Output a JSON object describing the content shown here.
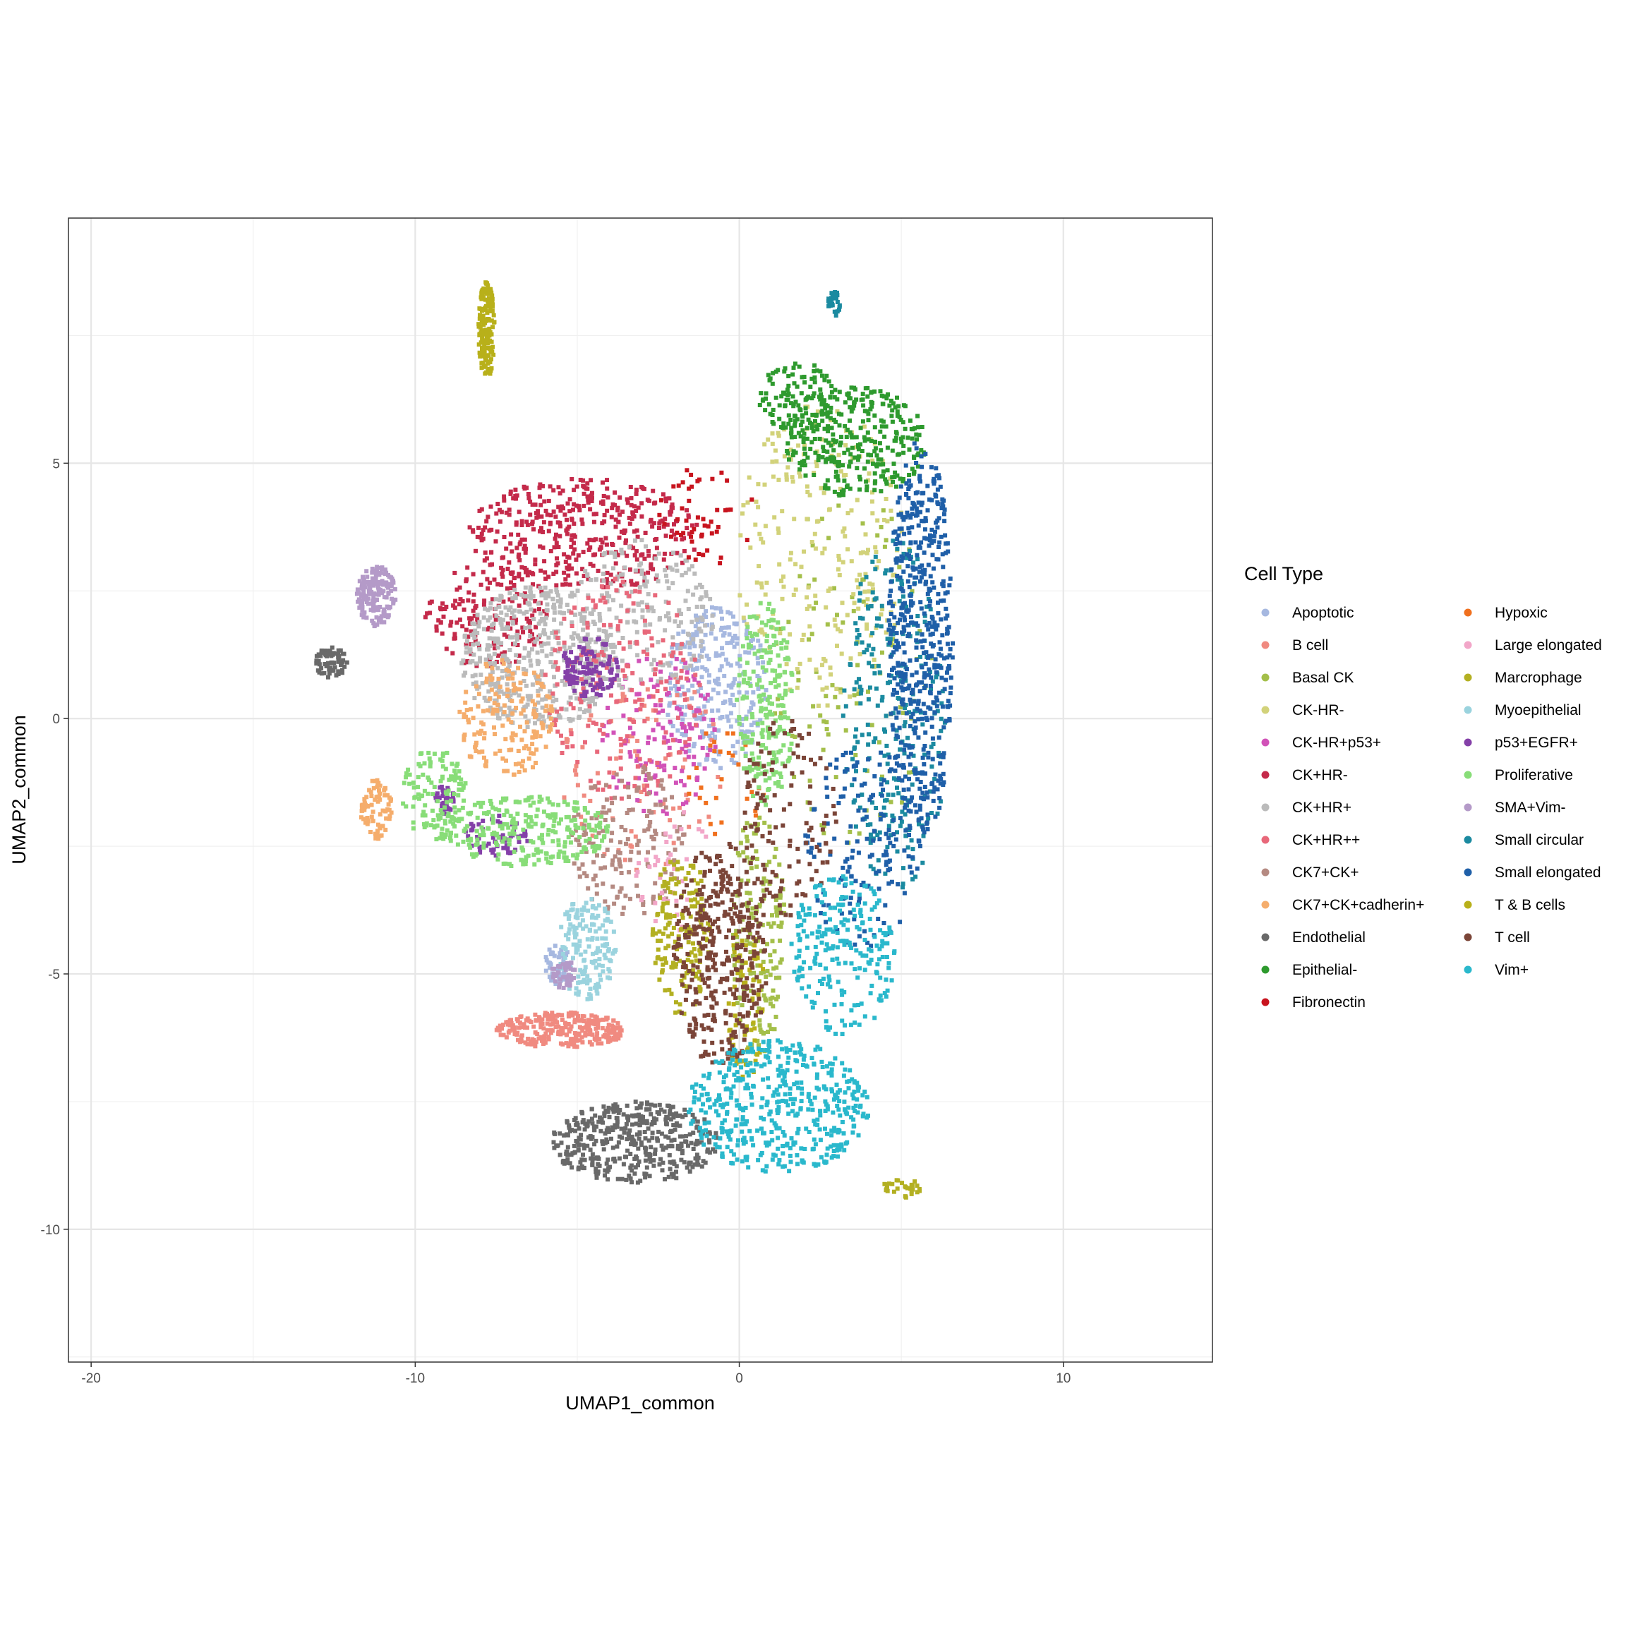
{
  "chart_data": {
    "type": "scatter",
    "title": "",
    "xlabel": "UMAP1_common",
    "ylabel": "UMAP2_common",
    "xlim": [
      -20.7,
      14.6
    ],
    "ylim": [
      -12.6,
      9.8
    ],
    "x_ticks": [
      -20,
      -10,
      0,
      10
    ],
    "y_ticks": [
      -10,
      -5,
      0,
      5
    ],
    "x_tick_labels": [
      "-20",
      "-10",
      "0",
      "10"
    ],
    "y_tick_labels": [
      "-10",
      "-5",
      "0",
      "5"
    ],
    "grid": true,
    "legend": {
      "title": "Cell Type",
      "placement": "right",
      "columns": 2
    },
    "series": [
      {
        "name": "Apoptotic",
        "color": "#a6b8e0",
        "regions": [
          {
            "cx": -0.7,
            "cy": 0.6,
            "rx": 1.6,
            "ry": 1.6,
            "n": 260
          },
          {
            "cx": -5.6,
            "cy": -4.8,
            "rx": 0.4,
            "ry": 0.4,
            "n": 50
          }
        ]
      },
      {
        "name": "B cell",
        "color": "#f08a80",
        "regions": [
          {
            "cx": -5.5,
            "cy": -6.1,
            "rx": 2.0,
            "ry": 0.35,
            "n": 260
          },
          {
            "cx": -3.0,
            "cy": -1.0,
            "rx": 2.5,
            "ry": 2.0,
            "n": 90
          }
        ]
      },
      {
        "name": "Basal CK",
        "color": "#a4bf4a",
        "regions": [
          {
            "cx": 0.6,
            "cy": -4.2,
            "rx": 0.8,
            "ry": 2.6,
            "n": 160
          },
          {
            "cx": 3.5,
            "cy": 1.0,
            "rx": 2.5,
            "ry": 3.5,
            "n": 100
          }
        ]
      },
      {
        "name": "CK-HR-",
        "color": "#d2d27a",
        "regions": [
          {
            "cx": 2.5,
            "cy": 3.2,
            "rx": 2.6,
            "ry": 3.0,
            "n": 240
          }
        ]
      },
      {
        "name": "CK-HR+p53+",
        "color": "#d152b8",
        "regions": [
          {
            "cx": -2.5,
            "cy": -0.3,
            "rx": 1.8,
            "ry": 1.6,
            "n": 130
          }
        ]
      },
      {
        "name": "CK+HR-",
        "color": "#c42a4a",
        "regions": [
          {
            "cx": -4.8,
            "cy": 3.6,
            "rx": 3.6,
            "ry": 1.1,
            "n": 420
          },
          {
            "cx": -7.8,
            "cy": 2.0,
            "rx": 2.0,
            "ry": 1.0,
            "n": 160
          }
        ]
      },
      {
        "name": "CK+HR+",
        "color": "#bbbbbb",
        "regions": [
          {
            "cx": -6.2,
            "cy": 1.2,
            "rx": 2.4,
            "ry": 1.4,
            "n": 480
          },
          {
            "cx": -3.0,
            "cy": 2.0,
            "rx": 2.2,
            "ry": 1.5,
            "n": 200
          }
        ]
      },
      {
        "name": "CK+HR++",
        "color": "#e8687a",
        "regions": [
          {
            "cx": -3.6,
            "cy": 0.6,
            "rx": 2.4,
            "ry": 2.2,
            "n": 200
          }
        ]
      },
      {
        "name": "CK7+CK+",
        "color": "#b58a82",
        "regions": [
          {
            "cx": -3.4,
            "cy": -2.4,
            "rx": 1.8,
            "ry": 1.5,
            "n": 160
          }
        ]
      },
      {
        "name": "CK7+CK+cadherin+",
        "color": "#f5ad6c",
        "regions": [
          {
            "cx": -7.2,
            "cy": 0.0,
            "rx": 1.5,
            "ry": 1.2,
            "n": 170
          },
          {
            "cx": -11.2,
            "cy": -1.8,
            "rx": 0.5,
            "ry": 0.6,
            "n": 80
          }
        ]
      },
      {
        "name": "Endothelial",
        "color": "#696969",
        "regions": [
          {
            "cx": -3.2,
            "cy": -8.3,
            "rx": 2.6,
            "ry": 0.8,
            "n": 420
          },
          {
            "cx": -12.6,
            "cy": 1.1,
            "rx": 0.5,
            "ry": 0.3,
            "n": 70
          }
        ]
      },
      {
        "name": "Epithelial-",
        "color": "#2e9a2e",
        "regions": [
          {
            "cx": 3.6,
            "cy": 5.4,
            "rx": 2.2,
            "ry": 1.1,
            "n": 320
          },
          {
            "cx": 1.8,
            "cy": 6.3,
            "rx": 1.2,
            "ry": 0.7,
            "n": 100
          }
        ]
      },
      {
        "name": "Fibronectin",
        "color": "#c8141e",
        "regions": [
          {
            "cx": -1.0,
            "cy": 4.0,
            "rx": 1.5,
            "ry": 1.0,
            "n": 50
          }
        ]
      },
      {
        "name": "Hypoxic",
        "color": "#f0701e",
        "regions": [
          {
            "cx": -0.4,
            "cy": -1.2,
            "rx": 1.2,
            "ry": 1.2,
            "n": 30
          }
        ]
      },
      {
        "name": "Large elongated",
        "color": "#f2a6c8",
        "regions": [
          {
            "cx": -2.0,
            "cy": -3.0,
            "rx": 1.2,
            "ry": 1.2,
            "n": 40
          }
        ]
      },
      {
        "name": "Marcrophage",
        "color": "#b3b022",
        "regions": [
          {
            "cx": -1.8,
            "cy": -4.2,
            "rx": 0.9,
            "ry": 1.6,
            "n": 160
          },
          {
            "cx": 5.0,
            "cy": -9.2,
            "rx": 0.6,
            "ry": 0.2,
            "n": 30
          }
        ]
      },
      {
        "name": "Myoepithelial",
        "color": "#9ad3de",
        "regions": [
          {
            "cx": -4.7,
            "cy": -4.5,
            "rx": 0.9,
            "ry": 1.0,
            "n": 160
          }
        ]
      },
      {
        "name": "p53+EGFR+",
        "color": "#8440a8",
        "regions": [
          {
            "cx": -4.6,
            "cy": 1.0,
            "rx": 0.9,
            "ry": 0.6,
            "n": 110
          },
          {
            "cx": -9.1,
            "cy": -1.6,
            "rx": 0.3,
            "ry": 0.3,
            "n": 40
          },
          {
            "cx": -7.5,
            "cy": -2.3,
            "rx": 1.0,
            "ry": 0.4,
            "n": 60
          }
        ]
      },
      {
        "name": "Proliferative",
        "color": "#88dd78",
        "regions": [
          {
            "cx": 0.8,
            "cy": 0.3,
            "rx": 0.9,
            "ry": 2.0,
            "n": 220
          },
          {
            "cx": -6.6,
            "cy": -2.2,
            "rx": 2.6,
            "ry": 0.7,
            "n": 260
          },
          {
            "cx": -9.4,
            "cy": -1.5,
            "rx": 1.0,
            "ry": 0.9,
            "n": 120
          }
        ]
      },
      {
        "name": "SMA+Vim-",
        "color": "#b49ac8",
        "regions": [
          {
            "cx": -11.2,
            "cy": 2.4,
            "rx": 0.6,
            "ry": 0.6,
            "n": 160
          },
          {
            "cx": -5.4,
            "cy": -5.0,
            "rx": 0.4,
            "ry": 0.3,
            "n": 40
          }
        ]
      },
      {
        "name": "Small circular",
        "color": "#1b8aa0",
        "regions": [
          {
            "cx": 4.8,
            "cy": 0.0,
            "rx": 1.6,
            "ry": 3.5,
            "n": 260
          },
          {
            "cx": 2.9,
            "cy": 8.1,
            "rx": 0.2,
            "ry": 0.3,
            "n": 30
          }
        ]
      },
      {
        "name": "Small elongated",
        "color": "#1f5fa8",
        "regions": [
          {
            "cx": 5.6,
            "cy": 1.5,
            "rx": 1.0,
            "ry": 4.0,
            "n": 520
          },
          {
            "cx": 3.8,
            "cy": -2.5,
            "rx": 1.8,
            "ry": 2.0,
            "n": 160
          }
        ]
      },
      {
        "name": "T & B cells",
        "color": "#b8b01a",
        "regions": [
          {
            "cx": -7.8,
            "cy": 7.6,
            "rx": 0.25,
            "ry": 0.95,
            "n": 150
          },
          {
            "cx": 0.2,
            "cy": -5.6,
            "rx": 0.6,
            "ry": 1.6,
            "n": 70
          }
        ]
      },
      {
        "name": "T cell",
        "color": "#7b4538",
        "regions": [
          {
            "cx": -0.6,
            "cy": -4.6,
            "rx": 1.5,
            "ry": 2.2,
            "n": 360
          },
          {
            "cx": 1.5,
            "cy": -2.0,
            "rx": 1.5,
            "ry": 2.0,
            "n": 120
          }
        ]
      },
      {
        "name": "Vim+",
        "color": "#2ab8cc",
        "regions": [
          {
            "cx": 1.2,
            "cy": -7.6,
            "rx": 2.8,
            "ry": 1.3,
            "n": 460
          },
          {
            "cx": 3.2,
            "cy": -4.6,
            "rx": 1.6,
            "ry": 1.6,
            "n": 220
          }
        ]
      }
    ]
  }
}
